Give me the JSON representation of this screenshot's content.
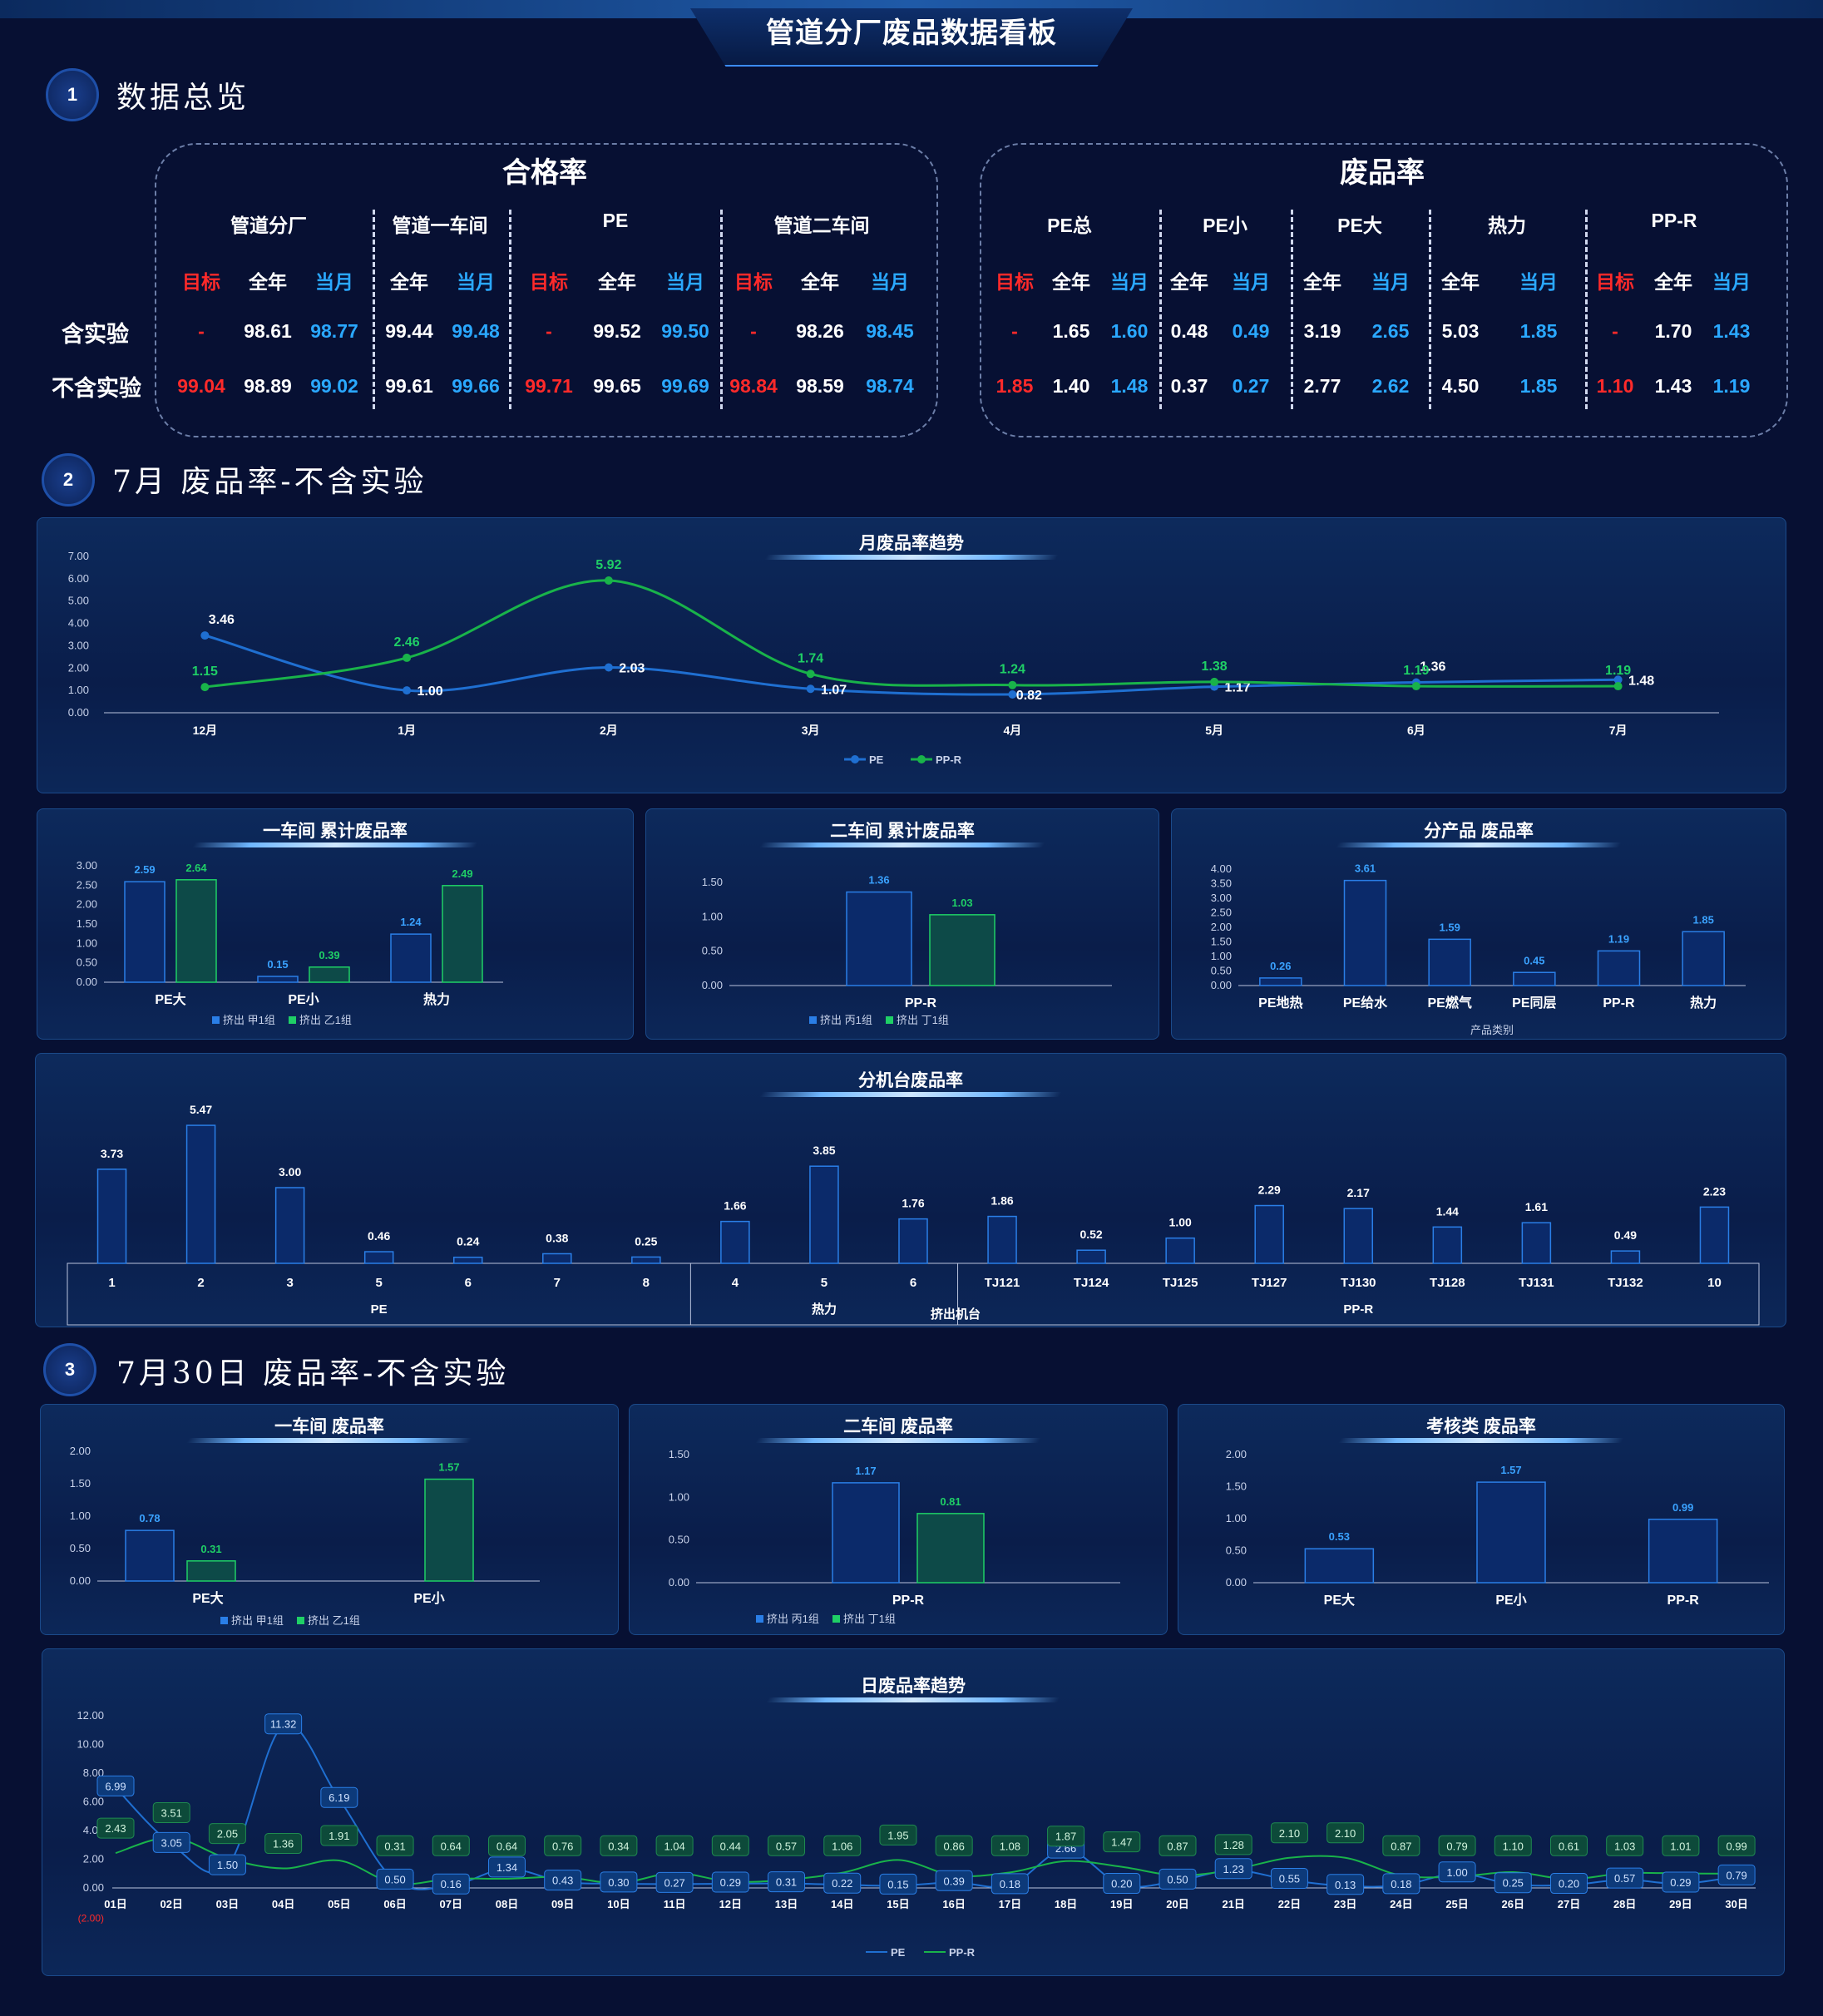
{
  "title": "管道分厂废品数据看板",
  "sections": {
    "s1": {
      "num": "1",
      "title": "数据总览"
    },
    "s2": {
      "num": "2",
      "title": "7月 废品率-不含实验"
    },
    "s3": {
      "num": "3",
      "title": "7月30日 废品率-不含实验"
    }
  },
  "overview": {
    "pass_rate": {
      "title": "合格率",
      "groups": [
        {
          "name": "管道分厂",
          "cols": [
            "目标",
            "全年",
            "当月"
          ],
          "rows": [
            [
              "-",
              "98.61",
              "98.77"
            ],
            [
              "99.04",
              "98.89",
              "99.02"
            ]
          ]
        },
        {
          "name": "管道一车间",
          "cols": [
            "全年",
            "当月"
          ],
          "rows": [
            [
              "99.44",
              "99.48"
            ],
            [
              "99.61",
              "99.66"
            ]
          ]
        },
        {
          "name": "PE",
          "cols": [
            "目标",
            "全年",
            "当月"
          ],
          "rows": [
            [
              "-",
              "99.52",
              "99.50"
            ],
            [
              "99.71",
              "99.65",
              "99.69"
            ]
          ]
        },
        {
          "name": "管道二车间",
          "cols": [
            "目标",
            "全年",
            "当月"
          ],
          "rows": [
            [
              "-",
              "98.26",
              "98.45"
            ],
            [
              "98.84",
              "98.59",
              "98.74"
            ]
          ]
        }
      ]
    },
    "scrap_rate": {
      "title": "废品率",
      "groups": [
        {
          "name": "PE总",
          "cols": [
            "目标",
            "全年",
            "当月"
          ],
          "rows": [
            [
              "-",
              "1.65",
              "1.60"
            ],
            [
              "1.85",
              "1.40",
              "1.48"
            ]
          ]
        },
        {
          "name": "PE小",
          "cols": [
            "全年",
            "当月"
          ],
          "rows": [
            [
              "0.48",
              "0.49"
            ],
            [
              "0.37",
              "0.27"
            ]
          ]
        },
        {
          "name": "PE大",
          "cols": [
            "全年",
            "当月"
          ],
          "rows": [
            [
              "3.19",
              "2.65"
            ],
            [
              "2.77",
              "2.62"
            ]
          ]
        },
        {
          "name": "热力",
          "cols": [
            "全年",
            "当月"
          ],
          "rows": [
            [
              "5.03",
              "1.85"
            ],
            [
              "4.50",
              "1.85"
            ]
          ]
        },
        {
          "name": "PP-R",
          "cols": [
            "目标",
            "全年",
            "当月"
          ],
          "rows": [
            [
              "-",
              "1.70",
              "1.43"
            ],
            [
              "1.10",
              "1.43",
              "1.19"
            ]
          ]
        }
      ]
    },
    "row_labels": [
      "含实验",
      "不含实验"
    ]
  },
  "colors": {
    "pe": "#1f6fd1",
    "ppr": "#19b34a",
    "target": "#ff2a2a",
    "month": "#2aa8ff"
  },
  "chart_data": [
    {
      "id": "monthly_trend",
      "type": "line",
      "title": "月废品率趋势",
      "categories": [
        "12月",
        "1月",
        "2月",
        "3月",
        "4月",
        "5月",
        "6月",
        "7月"
      ],
      "series": [
        {
          "name": "PE",
          "values": [
            3.46,
            1.0,
            2.03,
            1.07,
            0.82,
            1.17,
            1.36,
            1.48
          ]
        },
        {
          "name": "PP-R",
          "values": [
            1.15,
            2.46,
            5.92,
            1.74,
            1.24,
            1.38,
            1.19,
            1.19
          ]
        }
      ],
      "yticks": [
        "0.00",
        "1.00",
        "2.00",
        "3.00",
        "4.00",
        "5.00",
        "6.00",
        "7.00"
      ],
      "ylim": [
        0,
        7
      ]
    },
    {
      "id": "ws1_cum",
      "type": "bar",
      "title": "一车间 累计废品率",
      "categories": [
        "PE大",
        "PE小",
        "热力"
      ],
      "series": [
        {
          "name": "挤出 甲1组",
          "values": [
            2.59,
            0.15,
            1.24
          ]
        },
        {
          "name": "挤出 乙1组",
          "values": [
            2.64,
            0.39,
            2.49
          ]
        }
      ],
      "yticks": [
        "0.00",
        "0.50",
        "1.00",
        "1.50",
        "2.00",
        "2.50",
        "3.00"
      ],
      "ylim": [
        0,
        3
      ]
    },
    {
      "id": "ws2_cum",
      "type": "bar",
      "title": "二车间 累计废品率",
      "categories": [
        "PP-R"
      ],
      "series": [
        {
          "name": "挤出 丙1组",
          "values": [
            1.36
          ]
        },
        {
          "name": "挤出 丁1组",
          "values": [
            1.03
          ]
        }
      ],
      "yticks": [
        "0.00",
        "0.50",
        "1.00",
        "1.50"
      ],
      "ylim": [
        0,
        1.5
      ]
    },
    {
      "id": "by_product",
      "type": "bar",
      "title": "分产品 废品率",
      "categories": [
        "PE地热",
        "PE给水",
        "PE燃气",
        "PE同层",
        "PP-R",
        "热力"
      ],
      "series": [
        {
          "name": "",
          "values": [
            0.26,
            3.61,
            1.59,
            0.45,
            1.19,
            1.85
          ]
        }
      ],
      "xlabel": "产品类别",
      "yticks": [
        "0.00",
        "0.50",
        "1.00",
        "1.50",
        "2.00",
        "2.50",
        "3.00",
        "3.50",
        "4.00"
      ],
      "ylim": [
        0,
        4
      ]
    },
    {
      "id": "by_machine",
      "type": "bar",
      "title": "分机台废品率",
      "categories": [
        "1",
        "2",
        "3",
        "5",
        "6",
        "7",
        "8",
        "4",
        "5",
        "6",
        "TJ121",
        "TJ124",
        "TJ125",
        "TJ127",
        "TJ130",
        "TJ128",
        "TJ131",
        "TJ132",
        "10"
      ],
      "groups": [
        {
          "name": "PE",
          "count": 7
        },
        {
          "name": "热力",
          "count": 3
        },
        {
          "name": "PP-R",
          "count": 9
        }
      ],
      "xlabel": "挤出机台",
      "series": [
        {
          "name": "",
          "values": [
            3.73,
            5.47,
            3.0,
            0.46,
            0.24,
            0.38,
            0.25,
            1.66,
            3.85,
            1.76,
            1.86,
            0.52,
            1.0,
            2.29,
            2.17,
            1.44,
            1.61,
            0.49,
            2.23
          ]
        }
      ],
      "ylim": [
        0,
        6
      ]
    },
    {
      "id": "ws1_day",
      "type": "bar",
      "title": "一车间 废品率",
      "categories": [
        "PE大",
        "PE小"
      ],
      "series": [
        {
          "name": "挤出 甲1组",
          "values": [
            0.78,
            null
          ]
        },
        {
          "name": "挤出 乙1组",
          "values": [
            0.31,
            1.57
          ]
        }
      ],
      "yticks": [
        "0.00",
        "0.50",
        "1.00",
        "1.50",
        "2.00"
      ],
      "ylim": [
        0,
        2
      ]
    },
    {
      "id": "ws2_day",
      "type": "bar",
      "title": "二车间 废品率",
      "categories": [
        "PP-R"
      ],
      "series": [
        {
          "name": "挤出 丙1组",
          "values": [
            1.17
          ]
        },
        {
          "name": "挤出 丁1组",
          "values": [
            0.81
          ]
        }
      ],
      "yticks": [
        "0.00",
        "0.50",
        "1.00",
        "1.50"
      ],
      "ylim": [
        0,
        1.5
      ]
    },
    {
      "id": "assess_day",
      "type": "bar",
      "title": "考核类 废品率",
      "categories": [
        "PE大",
        "PE小",
        "PP-R"
      ],
      "series": [
        {
          "name": "",
          "values": [
            0.53,
            1.57,
            0.99
          ]
        }
      ],
      "yticks": [
        "0.00",
        "0.50",
        "1.00",
        "1.50",
        "2.00"
      ],
      "ylim": [
        0,
        2
      ]
    },
    {
      "id": "daily_trend",
      "type": "line",
      "title": "日废品率趋势",
      "categories": [
        "01日",
        "02日",
        "03日",
        "04日",
        "05日",
        "06日",
        "07日",
        "08日",
        "09日",
        "10日",
        "11日",
        "12日",
        "13日",
        "14日",
        "15日",
        "16日",
        "17日",
        "18日",
        "19日",
        "20日",
        "21日",
        "22日",
        "23日",
        "24日",
        "25日",
        "26日",
        "27日",
        "28日",
        "29日",
        "30日"
      ],
      "series": [
        {
          "name": "PE",
          "values": [
            6.99,
            3.05,
            1.5,
            11.32,
            6.19,
            0.5,
            0.16,
            1.34,
            0.43,
            0.3,
            0.27,
            0.29,
            0.31,
            0.22,
            0.15,
            0.39,
            0.18,
            2.66,
            0.2,
            0.5,
            1.23,
            0.55,
            0.13,
            0.18,
            1.0,
            0.25,
            0.2,
            0.57,
            0.29,
            0.79
          ]
        },
        {
          "name": "PP-R",
          "values": [
            2.43,
            3.51,
            2.05,
            1.36,
            1.91,
            0.31,
            0.64,
            0.64,
            0.76,
            0.34,
            1.04,
            0.44,
            0.57,
            1.06,
            1.95,
            0.86,
            1.08,
            1.87,
            1.47,
            0.87,
            1.28,
            2.1,
            2.1,
            0.87,
            0.79,
            1.1,
            0.61,
            1.03,
            1.01,
            0.99
          ]
        }
      ],
      "yticks": [
        "0.00",
        "2.00",
        "4.00",
        "6.00",
        "8.00",
        "10.00",
        "12.00"
      ],
      "ymin_label": "(2.00)",
      "ylim": [
        -2,
        12
      ]
    }
  ]
}
